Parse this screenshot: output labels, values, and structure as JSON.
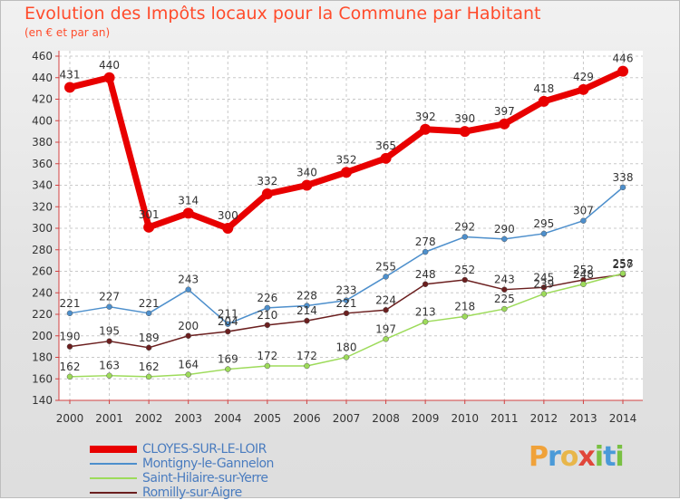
{
  "title": "Evolution des Impôts locaux pour la Commune par Habitant",
  "subtitle": "(en € et par an)",
  "brand": {
    "letters": [
      "P",
      "r",
      "o",
      "x",
      "i",
      "t",
      "i"
    ],
    "colors": [
      "#f0a23a",
      "#4a9ad8",
      "#e8b64a",
      "#e0463a",
      "#79c043",
      "#4a9ad8",
      "#79c043"
    ]
  },
  "chart_data": {
    "type": "line",
    "x": [
      "2000",
      "2001",
      "2002",
      "2003",
      "2004",
      "2005",
      "2006",
      "2007",
      "2008",
      "2009",
      "2010",
      "2011",
      "2012",
      "2013",
      "2014"
    ],
    "ylim": [
      140,
      460
    ],
    "yticks": [
      140,
      160,
      180,
      200,
      220,
      240,
      260,
      280,
      300,
      320,
      340,
      360,
      380,
      400,
      420,
      440,
      460
    ],
    "grid": true,
    "legend_position": "bottom-left",
    "series": [
      {
        "name": "CLOYES-SUR-LE-LOIR",
        "color": "#e80000",
        "width": 7,
        "marker": 6,
        "values": [
          431,
          440,
          301,
          314,
          300,
          332,
          340,
          352,
          365,
          392,
          390,
          397,
          418,
          429,
          446
        ],
        "labels": [
          "431",
          "440",
          "301",
          "314",
          "300",
          "332",
          "340",
          "352",
          "365",
          "392",
          "390",
          "397",
          "418",
          "429",
          "446"
        ]
      },
      {
        "name": "Montigny-le-Gannelon",
        "color": "#4d8fcc",
        "width": 1.5,
        "marker": 3,
        "values": [
          221,
          227,
          221,
          243,
          211,
          226,
          228,
          233,
          255,
          278,
          292,
          290,
          295,
          307,
          338
        ],
        "labels": [
          "221",
          "227",
          "221",
          "243",
          "211",
          "226",
          "228",
          "233",
          "255",
          "278",
          "292",
          "290",
          "295",
          "307",
          "338"
        ]
      },
      {
        "name": "Saint-Hilaire-sur-Yerre",
        "color": "#9ddb5a",
        "width": 1.5,
        "marker": 3,
        "values": [
          162,
          163,
          162,
          164,
          169,
          172,
          172,
          180,
          197,
          213,
          218,
          225,
          239,
          248,
          258
        ],
        "labels": [
          "162",
          "163",
          "162",
          "164",
          "169",
          "172",
          "172",
          "180",
          "197",
          "213",
          "218",
          "225",
          "239",
          "248",
          "258"
        ]
      },
      {
        "name": "Romilly-sur-Aigre",
        "color": "#6b1f1f",
        "width": 1.5,
        "marker": 3,
        "values": [
          190,
          195,
          189,
          200,
          204,
          210,
          214,
          221,
          224,
          248,
          252,
          243,
          245,
          252,
          257
        ],
        "labels": [
          "190",
          "195",
          "189",
          "200",
          "204",
          "210",
          "214",
          "221",
          "224",
          "248",
          "252",
          "243",
          "245",
          "252",
          "257"
        ]
      }
    ]
  }
}
